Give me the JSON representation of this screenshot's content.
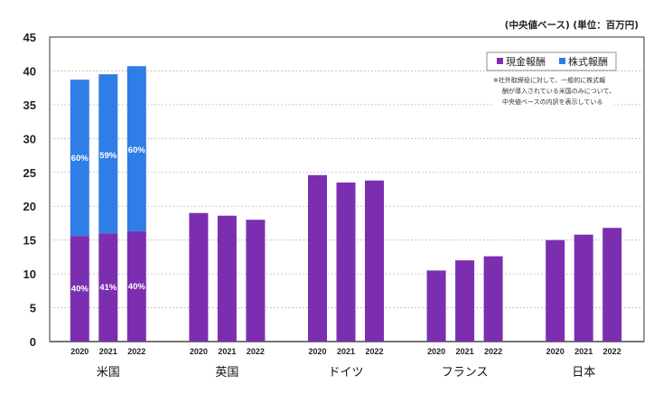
{
  "chart_data": {
    "type": "bar",
    "stacked": true,
    "unit_note": "(中央値ベース) (単位：百万円)",
    "ylim": [
      0,
      45
    ],
    "yticks": [
      0,
      5,
      10,
      15,
      20,
      25,
      30,
      35,
      40,
      45
    ],
    "grid": true,
    "legend_position": "top-right",
    "legend": [
      {
        "name": "現金報酬",
        "color": "#7b2fb0"
      },
      {
        "name": "株式報酬",
        "color": "#2f7de6"
      }
    ],
    "note_lines": [
      "※社外取締役に対して、一般的に株式報",
      "酬が導入されている米国のみについて、",
      "中央値ベースの内訳を表示している"
    ],
    "groups": [
      {
        "name": "米国",
        "years": [
          "2020",
          "2021",
          "2022"
        ],
        "cash": [
          15.6,
          16.0,
          16.3
        ],
        "stock": [
          23.1,
          23.5,
          24.4
        ],
        "cash_pct": [
          "40%",
          "41%",
          "40%"
        ],
        "stock_pct": [
          "60%",
          "59%",
          "60%"
        ]
      },
      {
        "name": "英国",
        "years": [
          "2020",
          "2021",
          "2022"
        ],
        "cash": [
          19.0,
          18.6,
          18.0
        ]
      },
      {
        "name": "ドイツ",
        "years": [
          "2020",
          "2021",
          "2022"
        ],
        "cash": [
          24.6,
          23.5,
          23.8
        ]
      },
      {
        "name": "フランス",
        "years": [
          "2020",
          "2021",
          "2022"
        ],
        "cash": [
          10.5,
          12.0,
          12.6
        ]
      },
      {
        "name": "日本",
        "years": [
          "2020",
          "2021",
          "2022"
        ],
        "cash": [
          15.0,
          15.8,
          16.8
        ]
      }
    ]
  }
}
